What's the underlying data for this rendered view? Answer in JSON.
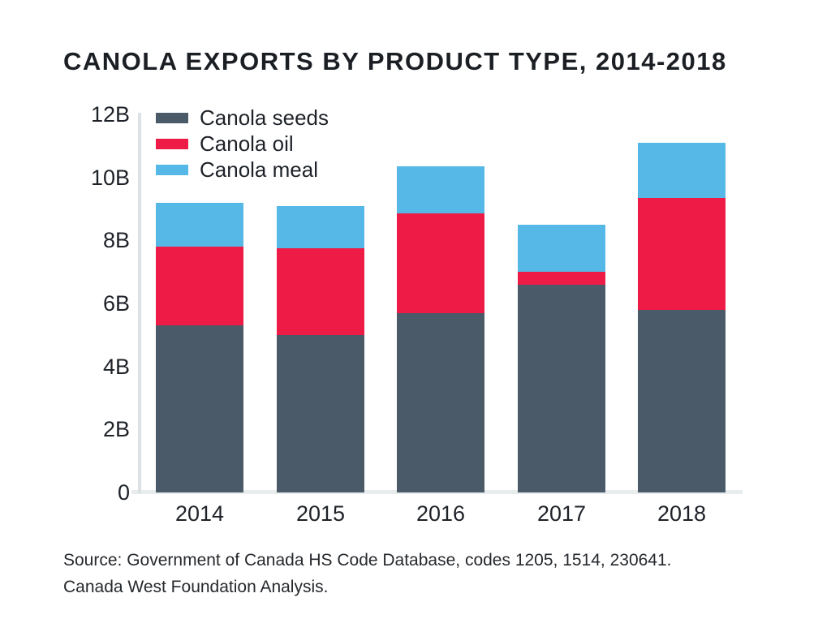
{
  "title": "CANOLA EXPORTS BY PRODUCT TYPE, 2014-2018",
  "source": {
    "line1": "Source: Government of Canada HS Code Database, codes 1205, 1514, 230641.",
    "line2": "Canada West Foundation Analysis."
  },
  "colors": {
    "seeds": "#4a5a68",
    "oil": "#ed1b45",
    "meal": "#56b8e6",
    "axis": "#dce1e4",
    "baseline": "#e9eced",
    "text": "#1e2228"
  },
  "chart_data": {
    "type": "bar",
    "stacked": true,
    "title": "CANOLA EXPORTS BY PRODUCT TYPE, 2014-2018",
    "unit": "B",
    "categories": [
      "2014",
      "2015",
      "2016",
      "2017",
      "2018"
    ],
    "series": [
      {
        "name": "Canola seeds",
        "color": "#4a5a68",
        "values": [
          5.3,
          5.0,
          5.7,
          6.6,
          5.8
        ]
      },
      {
        "name": "Canola oil",
        "color": "#ed1b45",
        "values": [
          2.5,
          2.75,
          3.15,
          0.4,
          3.55
        ]
      },
      {
        "name": "Canola meal",
        "color": "#56b8e6",
        "values": [
          1.4,
          1.35,
          1.5,
          1.5,
          1.75
        ]
      }
    ],
    "y_ticks": [
      {
        "label": "0",
        "value": 0
      },
      {
        "label": "2B",
        "value": 2
      },
      {
        "label": "4B",
        "value": 4
      },
      {
        "label": "6B",
        "value": 6
      },
      {
        "label": "8B",
        "value": 8
      },
      {
        "label": "10B",
        "value": 10
      },
      {
        "label": "12B",
        "value": 12
      }
    ],
    "ylim": [
      0,
      12
    ],
    "grid": false,
    "legend_position": "top-left"
  }
}
